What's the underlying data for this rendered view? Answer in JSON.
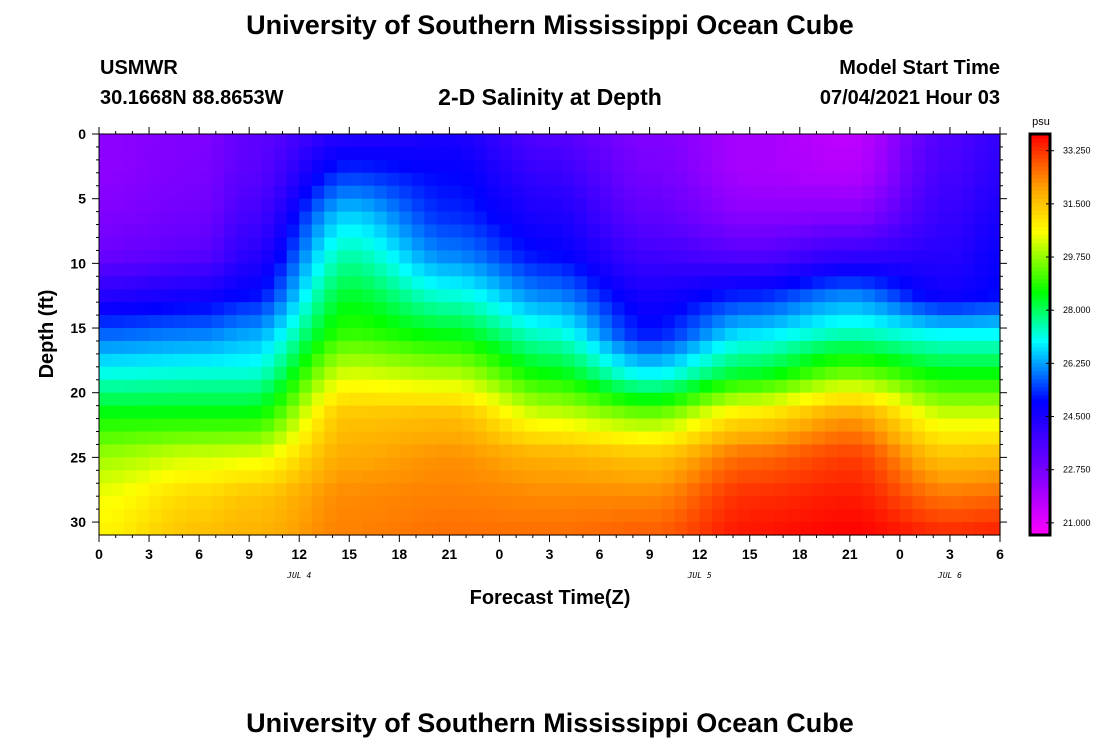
{
  "header": {
    "title": "University of Southern Mississippi Ocean Cube",
    "station": "USMWR",
    "coords": "30.1668N  88.8653W",
    "model_label": "Model Start Time",
    "model_time": "07/04/2021 Hour 03"
  },
  "footer": {
    "title": "University of Southern Mississippi Ocean Cube"
  },
  "chart_data": {
    "type": "heatmap",
    "title": "2-D Salinity at Depth",
    "xlabel": "Forecast Time(Z)",
    "ylabel": "Depth (ft)",
    "x_tick_labels": [
      "0",
      "3",
      "6",
      "9",
      "12",
      "15",
      "18",
      "21",
      "0",
      "3",
      "6",
      "9",
      "12",
      "15",
      "18",
      "21",
      "0",
      "3",
      "6"
    ],
    "x_range_hours": [
      0,
      54
    ],
    "y_ticks": [
      0,
      5,
      10,
      15,
      20,
      25,
      30
    ],
    "y_tick_labels": [
      "0",
      "5",
      "10",
      "15",
      "20",
      "25",
      "30"
    ],
    "y_range": [
      0,
      31
    ],
    "date_labels": [
      {
        "label": "JUL 4",
        "hour": 12
      },
      {
        "label": "JUL 5",
        "hour": 36
      },
      {
        "label": "JUL 6",
        "hour": 51
      }
    ],
    "colorbar": {
      "unit": "psu",
      "range": [
        20.6,
        33.8
      ],
      "tick_values": [
        21.0,
        22.75,
        24.5,
        26.25,
        28.0,
        29.75,
        31.5,
        33.25
      ],
      "tick_labels": [
        "21.000",
        "22.750",
        "24.500",
        "26.250",
        "28.000",
        "29.750",
        "31.500",
        "33.250"
      ],
      "colors": [
        "#ff00ff",
        "#8000ff",
        "#0000ff",
        "#00ffff",
        "#00ff00",
        "#ffff00",
        "#ffa500",
        "#ff0000"
      ],
      "color_stops": [
        20.6,
        22.6,
        25.0,
        27.0,
        28.6,
        30.6,
        32.0,
        33.8
      ]
    },
    "profile_hours": [
      0,
      6,
      9,
      15,
      21,
      27,
      33,
      39,
      45,
      51,
      54
    ],
    "profile_values": [
      [
        22.4,
        22.4,
        22.6,
        23.0,
        24.3,
        25.8,
        27.2,
        28.6,
        29.8,
        30.5,
        30.8
      ],
      [
        22.6,
        22.7,
        22.9,
        23.3,
        24.6,
        26.0,
        27.3,
        28.6,
        30.2,
        31.2,
        31.6
      ],
      [
        23.2,
        23.3,
        23.7,
        24.2,
        25.0,
        26.3,
        27.3,
        28.6,
        30.3,
        31.5,
        31.8
      ],
      [
        24.3,
        25.4,
        26.6,
        27.5,
        28.3,
        29.0,
        30.3,
        31.5,
        31.9,
        32.3,
        32.4
      ],
      [
        24.5,
        25.0,
        25.3,
        26.0,
        27.2,
        28.5,
        30.0,
        31.6,
        32.2,
        32.4,
        32.6
      ],
      [
        23.4,
        24.0,
        24.5,
        25.0,
        26.0,
        27.3,
        28.6,
        30.2,
        31.8,
        32.3,
        32.6
      ],
      [
        22.6,
        22.8,
        23.2,
        23.8,
        24.6,
        25.2,
        27.0,
        29.5,
        31.5,
        32.3,
        32.8
      ],
      [
        22.0,
        22.0,
        22.4,
        23.4,
        25.2,
        26.8,
        28.4,
        31.0,
        32.6,
        33.3,
        33.6
      ],
      [
        21.6,
        21.8,
        22.5,
        24.0,
        26.0,
        27.5,
        29.5,
        32.0,
        33.1,
        33.5,
        33.8
      ],
      [
        23.5,
        23.7,
        24.0,
        24.3,
        24.7,
        27.0,
        28.6,
        30.2,
        31.5,
        32.5,
        33.4
      ],
      [
        24.0,
        24.2,
        24.5,
        24.8,
        25.0,
        27.0,
        28.6,
        30.2,
        31.6,
        32.6,
        33.5
      ]
    ]
  }
}
